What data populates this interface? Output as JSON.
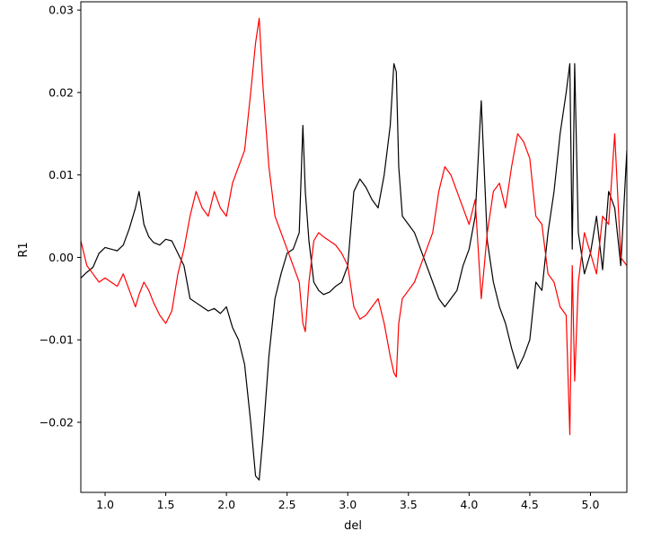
{
  "chart_data": {
    "type": "line",
    "title": "",
    "xlabel": "del",
    "ylabel": "R1",
    "xlim": [
      0.8,
      5.3
    ],
    "ylim": [
      -0.0285,
      0.031
    ],
    "grid": false,
    "legend": "none",
    "x_ticks": [
      1.0,
      1.5,
      2.0,
      2.5,
      3.0,
      3.5,
      4.0,
      4.5,
      5.0
    ],
    "x_tick_labels": [
      "1.0",
      "1.5",
      "2.0",
      "2.5",
      "3.0",
      "3.5",
      "4.0",
      "4.5",
      "5.0"
    ],
    "y_ticks": [
      -0.02,
      -0.01,
      0.0,
      0.01,
      0.02,
      0.03
    ],
    "y_tick_labels": [
      "−0.02",
      "−0.01",
      "0.00",
      "0.01",
      "0.02",
      "0.03"
    ],
    "series": [
      {
        "color": "#000000",
        "x": [
          0.8,
          0.85,
          0.9,
          0.95,
          1.0,
          1.05,
          1.1,
          1.15,
          1.2,
          1.25,
          1.28,
          1.32,
          1.36,
          1.4,
          1.45,
          1.5,
          1.55,
          1.6,
          1.65,
          1.7,
          1.75,
          1.8,
          1.85,
          1.9,
          1.95,
          2.0,
          2.05,
          2.1,
          2.15,
          2.2,
          2.24,
          2.27,
          2.3,
          2.35,
          2.4,
          2.45,
          2.5,
          2.55,
          2.6,
          2.63,
          2.65,
          2.68,
          2.72,
          2.76,
          2.8,
          2.85,
          2.9,
          2.95,
          3.0,
          3.05,
          3.1,
          3.15,
          3.2,
          3.25,
          3.3,
          3.35,
          3.38,
          3.4,
          3.42,
          3.45,
          3.5,
          3.55,
          3.6,
          3.65,
          3.7,
          3.75,
          3.8,
          3.85,
          3.9,
          3.95,
          4.0,
          4.05,
          4.1,
          4.15,
          4.2,
          4.25,
          4.3,
          4.35,
          4.4,
          4.45,
          4.5,
          4.55,
          4.6,
          4.65,
          4.7,
          4.75,
          4.8,
          4.83,
          4.85,
          4.87,
          4.9,
          4.95,
          5.0,
          5.05,
          5.1,
          5.15,
          5.2,
          5.25,
          5.3
        ],
        "y": [
          -0.0025,
          -0.0018,
          -0.0012,
          0.0005,
          0.0012,
          0.001,
          0.0008,
          0.0015,
          0.0035,
          0.006,
          0.008,
          0.004,
          0.0025,
          0.0018,
          0.0015,
          0.0022,
          0.002,
          0.0005,
          -0.001,
          -0.005,
          -0.0055,
          -0.006,
          -0.0065,
          -0.0062,
          -0.0068,
          -0.006,
          -0.0085,
          -0.01,
          -0.013,
          -0.02,
          -0.0265,
          -0.027,
          -0.022,
          -0.012,
          -0.005,
          -0.002,
          0.0005,
          0.001,
          0.003,
          0.016,
          0.008,
          0.002,
          -0.003,
          -0.004,
          -0.0045,
          -0.0042,
          -0.0035,
          -0.003,
          -0.001,
          0.008,
          0.0095,
          0.0085,
          0.007,
          0.006,
          0.01,
          0.016,
          0.0235,
          0.0225,
          0.011,
          0.005,
          0.004,
          0.003,
          0.001,
          -0.001,
          -0.003,
          -0.005,
          -0.006,
          -0.005,
          -0.004,
          -0.001,
          0.001,
          0.005,
          0.019,
          0.002,
          -0.003,
          -0.006,
          -0.008,
          -0.011,
          -0.0135,
          -0.012,
          -0.01,
          -0.003,
          -0.004,
          0.003,
          0.008,
          0.015,
          0.02,
          0.0235,
          0.001,
          0.0235,
          0.003,
          -0.002,
          0.0005,
          0.005,
          -0.0015,
          0.008,
          0.006,
          -0.001,
          0.013
        ]
      },
      {
        "color": "#ff0000",
        "x": [
          0.8,
          0.85,
          0.9,
          0.95,
          1.0,
          1.05,
          1.1,
          1.15,
          1.2,
          1.25,
          1.28,
          1.32,
          1.36,
          1.4,
          1.45,
          1.5,
          1.55,
          1.6,
          1.65,
          1.7,
          1.75,
          1.8,
          1.85,
          1.9,
          1.95,
          2.0,
          2.05,
          2.1,
          2.15,
          2.2,
          2.24,
          2.27,
          2.3,
          2.35,
          2.4,
          2.45,
          2.5,
          2.55,
          2.6,
          2.63,
          2.65,
          2.68,
          2.72,
          2.76,
          2.8,
          2.85,
          2.9,
          2.95,
          3.0,
          3.05,
          3.1,
          3.15,
          3.2,
          3.25,
          3.3,
          3.35,
          3.38,
          3.4,
          3.42,
          3.45,
          3.5,
          3.55,
          3.6,
          3.65,
          3.7,
          3.75,
          3.8,
          3.85,
          3.9,
          3.95,
          4.0,
          4.05,
          4.1,
          4.15,
          4.2,
          4.25,
          4.3,
          4.35,
          4.4,
          4.45,
          4.5,
          4.55,
          4.6,
          4.65,
          4.7,
          4.75,
          4.8,
          4.83,
          4.85,
          4.87,
          4.9,
          4.95,
          5.0,
          5.05,
          5.1,
          5.15,
          5.2,
          5.25,
          5.3
        ],
        "y": [
          0.002,
          -0.001,
          -0.002,
          -0.003,
          -0.0025,
          -0.003,
          -0.0035,
          -0.002,
          -0.004,
          -0.006,
          -0.0045,
          -0.003,
          -0.004,
          -0.0055,
          -0.007,
          -0.008,
          -0.0065,
          -0.002,
          0.001,
          0.005,
          0.008,
          0.006,
          0.005,
          0.008,
          0.006,
          0.005,
          0.009,
          0.011,
          0.013,
          0.02,
          0.026,
          0.029,
          0.021,
          0.011,
          0.005,
          0.003,
          0.001,
          -0.001,
          -0.003,
          -0.008,
          -0.009,
          -0.003,
          0.002,
          0.003,
          0.0025,
          0.002,
          0.0015,
          0.0005,
          -0.001,
          -0.006,
          -0.0075,
          -0.007,
          -0.006,
          -0.005,
          -0.008,
          -0.012,
          -0.014,
          -0.0145,
          -0.008,
          -0.005,
          -0.004,
          -0.003,
          -0.001,
          0.001,
          0.003,
          0.008,
          0.011,
          0.01,
          0.008,
          0.006,
          0.004,
          0.007,
          -0.005,
          0.003,
          0.008,
          0.009,
          0.006,
          0.011,
          0.015,
          0.014,
          0.012,
          0.005,
          0.004,
          -0.002,
          -0.003,
          -0.006,
          -0.007,
          -0.0215,
          -0.001,
          -0.015,
          -0.003,
          0.003,
          0.0005,
          -0.002,
          0.005,
          0.004,
          0.015,
          0.0,
          -0.001
        ]
      }
    ]
  }
}
